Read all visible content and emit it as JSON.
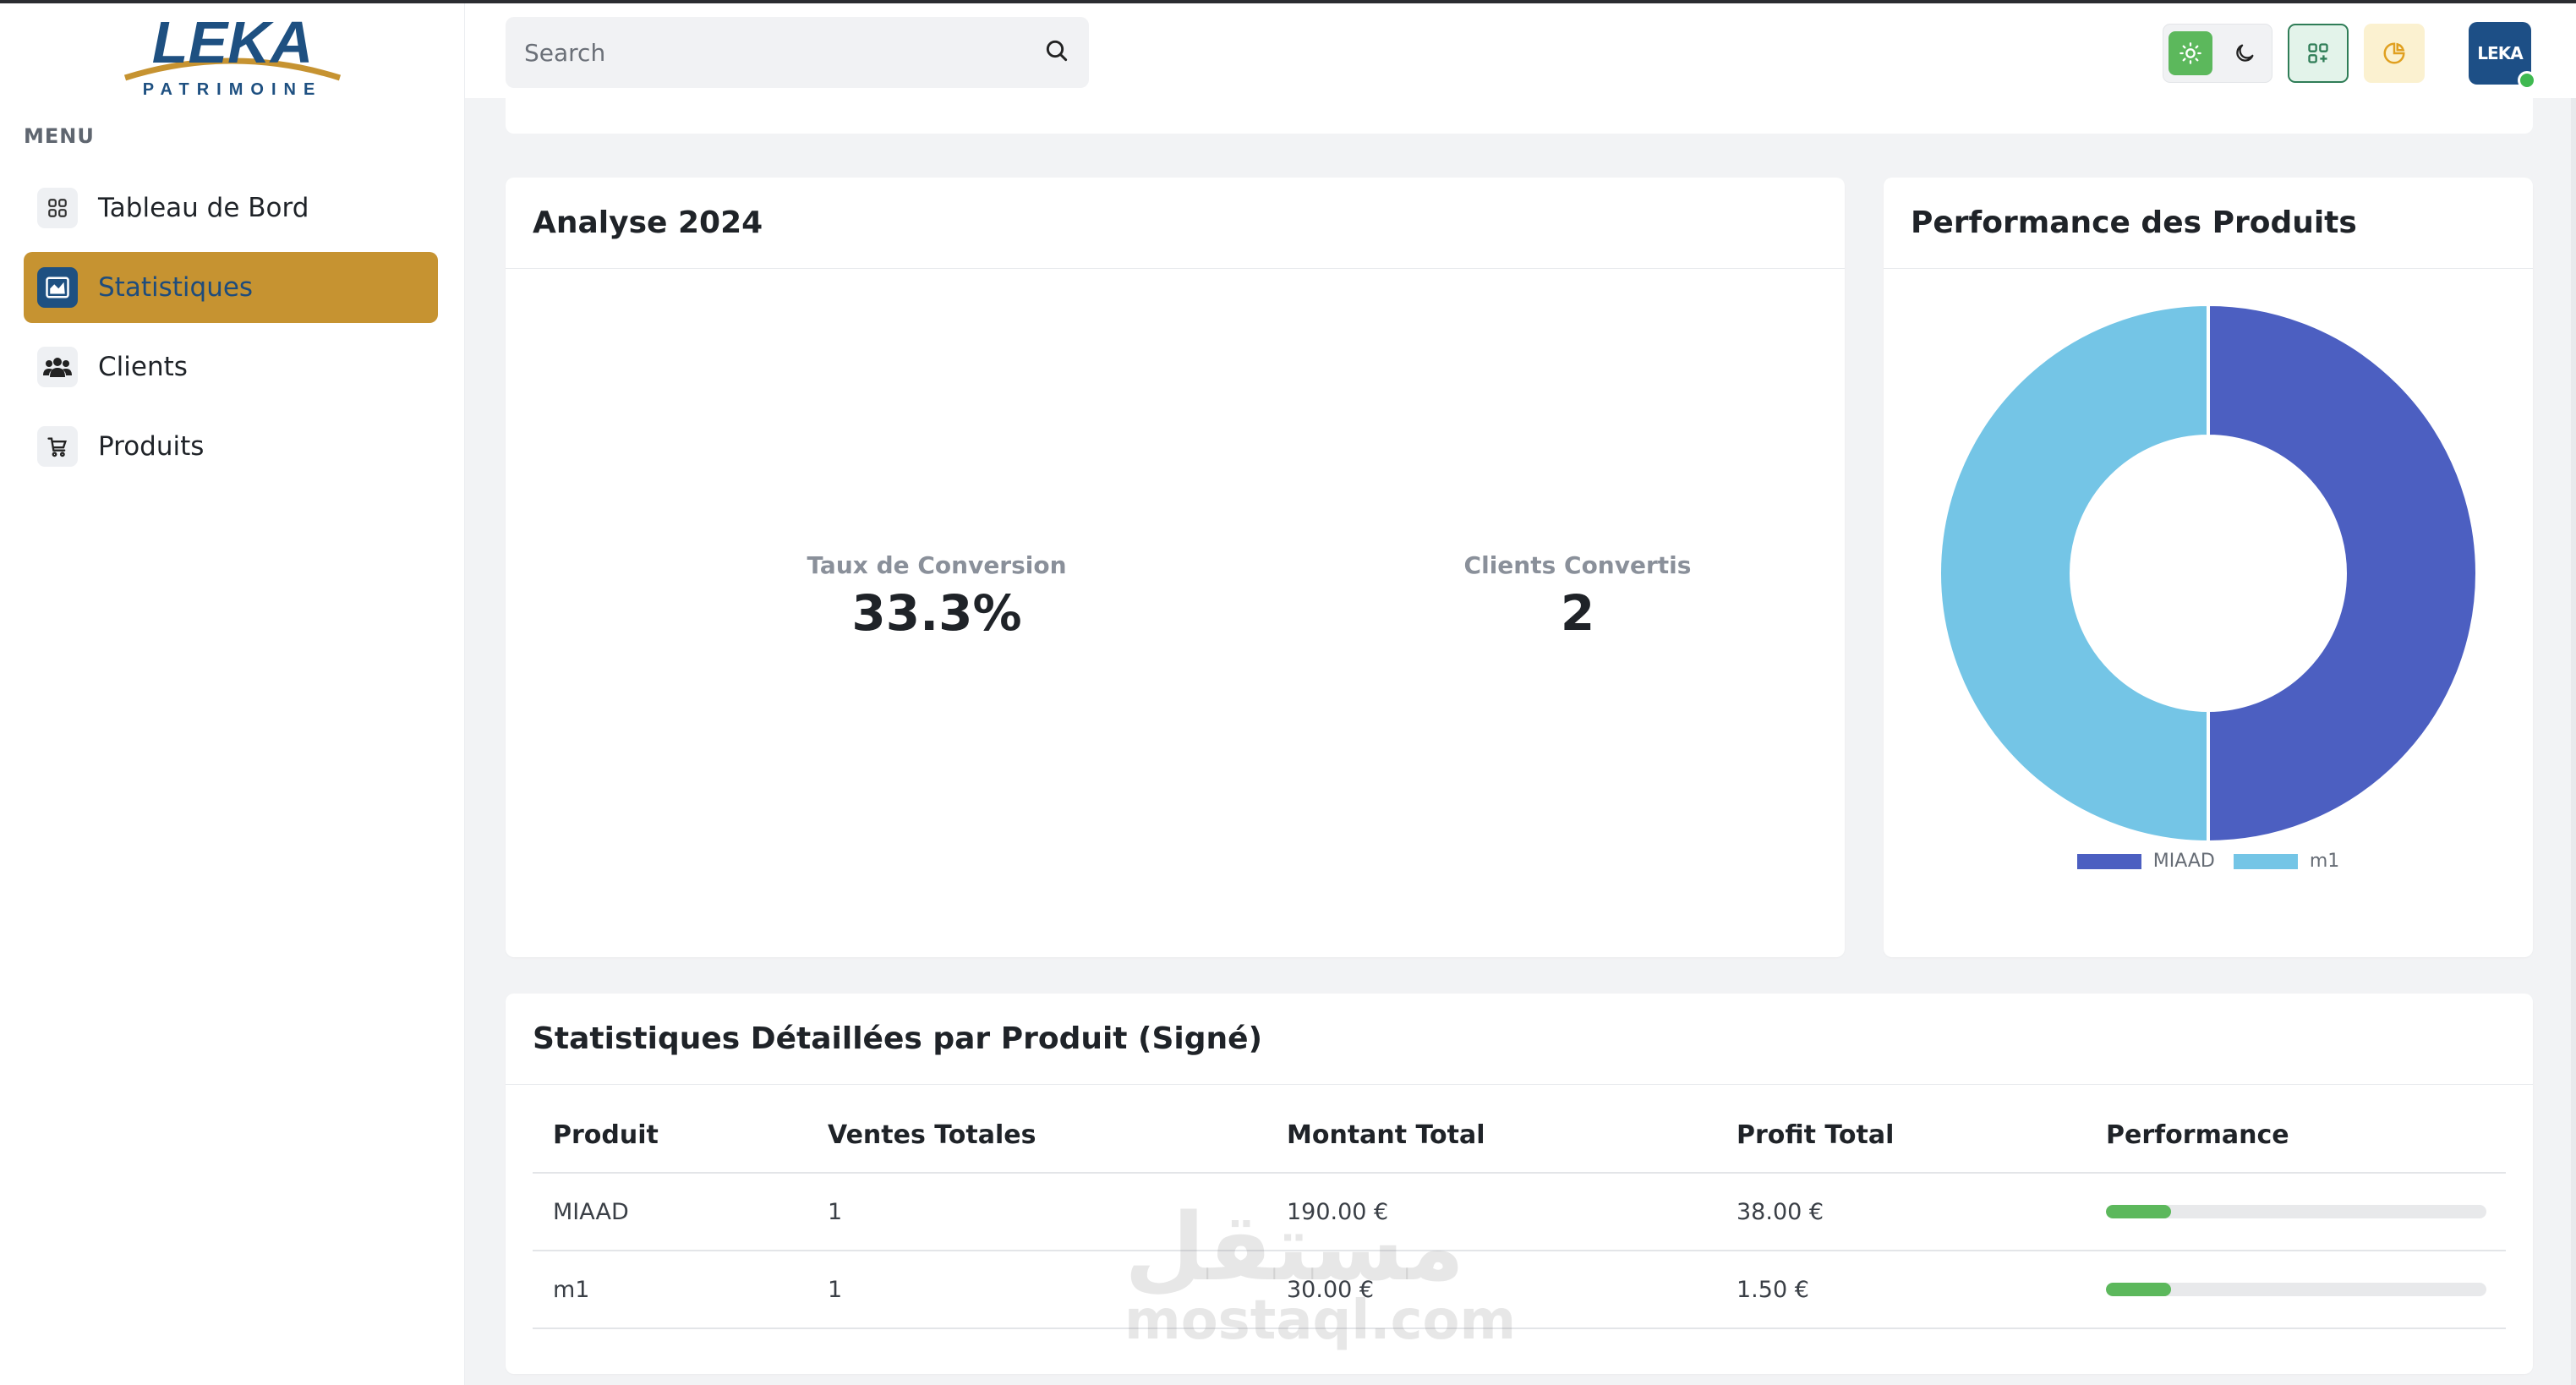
{
  "brand": {
    "name": "LEKA",
    "tagline": "PATRIMOINE",
    "avatar_text": "LEKA"
  },
  "sidebar": {
    "menu_title": "MENU",
    "items": [
      {
        "label": "Tableau de Bord",
        "icon": "grid-icon",
        "active": false
      },
      {
        "label": "Statistiques",
        "icon": "chart-area-icon",
        "active": true
      },
      {
        "label": "Clients",
        "icon": "users-icon",
        "active": false
      },
      {
        "label": "Produits",
        "icon": "cart-icon",
        "active": false
      }
    ]
  },
  "header": {
    "search_placeholder": "Search",
    "search_value": "",
    "icons": [
      "search-icon",
      "sun-icon",
      "moon-icon",
      "apps-icon",
      "pie-chart-icon"
    ]
  },
  "analyse": {
    "title": "Analyse 2024",
    "kpis": [
      {
        "label": "Taux de Conversion",
        "value": "33.3%"
      },
      {
        "label": "Clients Convertis",
        "value": "2"
      }
    ]
  },
  "performance": {
    "title": "Performance des Produits"
  },
  "chart_data": {
    "type": "pie",
    "variant": "doughnut",
    "categories": [
      "MIAAD",
      "m1"
    ],
    "values": [
      50,
      50
    ],
    "colors": [
      "#4c5fc1",
      "#74c5e6"
    ],
    "legend_position": "bottom"
  },
  "detail": {
    "title": "Statistiques Détaillées par Produit (Signé)",
    "columns": [
      "Produit",
      "Ventes Totales",
      "Montant Total",
      "Profit Total",
      "Performance"
    ],
    "rows": [
      {
        "produit": "MIAAD",
        "ventes": "1",
        "montant": "190.00 €",
        "profit": "38.00 €",
        "performance": 0.17
      },
      {
        "produit": "m1",
        "ventes": "1",
        "montant": "30.00 €",
        "profit": "1.50 €",
        "performance": 0.17
      }
    ]
  },
  "watermark": {
    "arabic": "مستقل",
    "latin": "mostaql.com"
  },
  "colors": {
    "accent_gold": "#c69331",
    "brand_blue": "#1e5081",
    "success": "#5cb85c"
  }
}
